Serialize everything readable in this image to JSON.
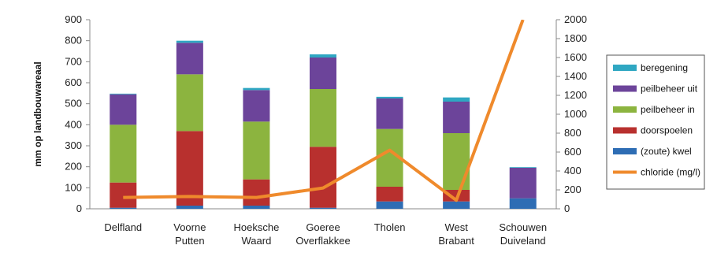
{
  "chart_data": {
    "type": "bar",
    "stacked": true,
    "categories": [
      [
        "Delfland"
      ],
      [
        "Voorne",
        "Putten"
      ],
      [
        "Hoeksche",
        "Waard"
      ],
      [
        "Goeree",
        "Overflakkee"
      ],
      [
        "Tholen"
      ],
      [
        "West",
        "Brabant"
      ],
      [
        "Schouwen",
        "Duiveland"
      ]
    ],
    "ylabel": "mm op landbouwareaal",
    "ylim": [
      0,
      900
    ],
    "yticks": [
      0,
      100,
      200,
      300,
      400,
      500,
      600,
      700,
      800,
      900
    ],
    "y2lim": [
      0,
      2000
    ],
    "y2ticks": [
      0,
      200,
      400,
      600,
      800,
      1000,
      1200,
      1400,
      1600,
      1800,
      2000
    ],
    "grid": false,
    "legend_position": "right",
    "series": [
      {
        "name": "(zoute) kwel",
        "color": "#2e6db4",
        "values": [
          5,
          15,
          15,
          5,
          35,
          35,
          50
        ]
      },
      {
        "name": "doorspoelen",
        "color": "#b8302e",
        "values": [
          120,
          355,
          125,
          290,
          70,
          55,
          0
        ]
      },
      {
        "name": "peilbeheer in",
        "color": "#8cb43f",
        "values": [
          275,
          270,
          275,
          275,
          275,
          270,
          0
        ]
      },
      {
        "name": "peilbeheer uit",
        "color": "#6c449a",
        "values": [
          145,
          150,
          150,
          150,
          145,
          150,
          145
        ]
      },
      {
        "name": "beregening",
        "color": "#2fa7c2",
        "values": [
          3,
          10,
          10,
          15,
          8,
          20,
          3
        ]
      }
    ],
    "line": {
      "name": "chloride (mg/l)",
      "color": "#ef8a2c",
      "axis": "right",
      "values": [
        120,
        130,
        120,
        220,
        620,
        90,
        2000
      ]
    },
    "legend_order": [
      "beregening",
      "peilbeheer uit",
      "peilbeheer in",
      "doorspoelen",
      "(zoute) kwel",
      "chloride (mg/l)"
    ]
  }
}
